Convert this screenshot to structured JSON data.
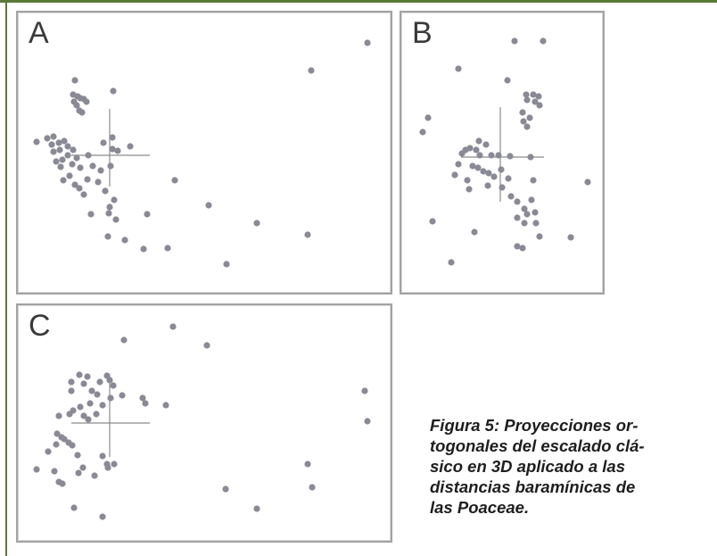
{
  "panels": [
    {
      "label": "A"
    },
    {
      "label": "B"
    },
    {
      "label": "C"
    }
  ],
  "caption": {
    "lines": [
      "Figura 5: Proyecciones or-",
      "togonales del escalado clá-",
      "sico en 3D aplicado a las",
      "distancias baramínicas de",
      "las Poaceae."
    ]
  },
  "colors": {
    "frame": "#5a7a3a",
    "panel_border": "#a3a3a3",
    "point": "#8a8a96",
    "axis": "#8c8c8c"
  }
}
